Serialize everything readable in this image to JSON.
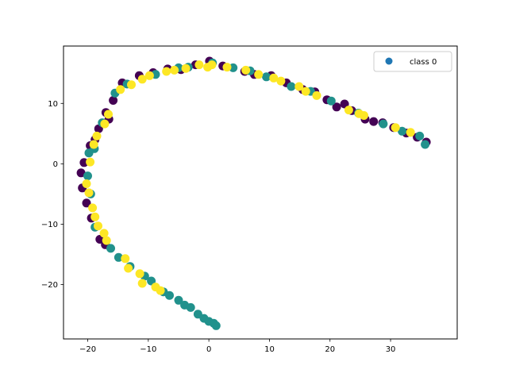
{
  "chart_data": {
    "type": "scatter",
    "title": "",
    "xlabel": "",
    "ylabel": "",
    "xlim": [
      -24,
      41
    ],
    "ylim": [
      -29,
      19.5
    ],
    "xticks": [
      -20,
      -10,
      0,
      10,
      20,
      30
    ],
    "yticks": [
      -20,
      -10,
      0,
      10
    ],
    "grid": false,
    "legend": {
      "position": "top-right",
      "entries": [
        "class 0"
      ],
      "marker_color": "#1f77b4"
    },
    "classes": [
      {
        "label": "0",
        "color": "#440154"
      },
      {
        "label": "1",
        "color": "#21918c"
      },
      {
        "label": "2",
        "color": "#fde725"
      }
    ],
    "points": [
      [
        -11.5,
        14.6,
        0
      ],
      [
        -14.3,
        13.4,
        0
      ],
      [
        -15.8,
        10.5,
        0
      ],
      [
        -17.0,
        8.5,
        0
      ],
      [
        -18.8,
        4.0,
        0
      ],
      [
        -19.6,
        3.0,
        0
      ],
      [
        -20.6,
        0.2,
        0
      ],
      [
        -21.1,
        -1.5,
        0
      ],
      [
        -20.9,
        -4.0,
        0
      ],
      [
        -20.2,
        -6.5,
        0
      ],
      [
        -19.4,
        -9.0,
        0
      ],
      [
        -18.0,
        -12.5,
        0
      ],
      [
        -17.1,
        -13.4,
        0
      ],
      [
        -9.2,
        15.1,
        0
      ],
      [
        -6.8,
        15.7,
        0
      ],
      [
        -4.6,
        15.6,
        0
      ],
      [
        -2.2,
        16.4,
        0
      ],
      [
        0.1,
        17.0,
        0
      ],
      [
        2.3,
        16.2,
        0
      ],
      [
        5.9,
        15.3,
        0
      ],
      [
        7.5,
        14.8,
        0
      ],
      [
        10.3,
        14.6,
        0
      ],
      [
        12.8,
        13.4,
        0
      ],
      [
        15.5,
        12.3,
        0
      ],
      [
        17.5,
        11.9,
        0
      ],
      [
        19.5,
        10.6,
        0
      ],
      [
        21.1,
        9.4,
        0
      ],
      [
        23.6,
        8.8,
        0
      ],
      [
        25.8,
        7.4,
        0
      ],
      [
        28.7,
        6.8,
        0
      ],
      [
        30.5,
        6.0,
        0
      ],
      [
        32.6,
        5.1,
        0
      ],
      [
        34.4,
        4.4,
        0
      ],
      [
        35.9,
        3.6,
        0
      ],
      [
        -18.2,
        5.8,
        0
      ],
      [
        -16.5,
        7.4,
        0
      ],
      [
        22.4,
        9.9,
        0
      ],
      [
        27.2,
        7.0,
        0
      ],
      [
        -17.6,
        6.8,
        1
      ],
      [
        -18.9,
        2.5,
        1
      ],
      [
        -19.8,
        1.8,
        1
      ],
      [
        -20.0,
        -2.0,
        1
      ],
      [
        -19.5,
        -5.0,
        1
      ],
      [
        -18.8,
        -10.5,
        1
      ],
      [
        -16.2,
        -14.0,
        1
      ],
      [
        -14.9,
        -15.5,
        1
      ],
      [
        -13.0,
        -17.0,
        1
      ],
      [
        -10.6,
        -18.6,
        1
      ],
      [
        -9.5,
        -19.4,
        1
      ],
      [
        -7.5,
        -21.2,
        1
      ],
      [
        -6.5,
        -21.8,
        1
      ],
      [
        -5.0,
        -22.6,
        1
      ],
      [
        -4.0,
        -23.4,
        1
      ],
      [
        -3.0,
        -23.8,
        1
      ],
      [
        -1.8,
        -24.9,
        1
      ],
      [
        -0.8,
        -25.6,
        1
      ],
      [
        0.0,
        -26.1,
        1
      ],
      [
        0.8,
        -26.4,
        1
      ],
      [
        1.2,
        -26.8,
        1
      ],
      [
        -13.5,
        13.2,
        1
      ],
      [
        -8.8,
        14.8,
        1
      ],
      [
        -5.0,
        15.9,
        1
      ],
      [
        -3.4,
        16.0,
        1
      ],
      [
        0.6,
        16.7,
        1
      ],
      [
        4.0,
        15.9,
        1
      ],
      [
        6.8,
        15.4,
        1
      ],
      [
        9.5,
        14.4,
        1
      ],
      [
        13.6,
        12.8,
        1
      ],
      [
        16.8,
        12.0,
        1
      ],
      [
        20.2,
        10.4,
        1
      ],
      [
        24.7,
        8.4,
        1
      ],
      [
        28.8,
        6.6,
        1
      ],
      [
        31.9,
        5.4,
        1
      ],
      [
        34.8,
        4.6,
        1
      ],
      [
        35.7,
        3.2,
        1
      ],
      [
        -15.5,
        11.7,
        1
      ],
      [
        -12.8,
        13.1,
        2
      ],
      [
        -11.0,
        14.0,
        2
      ],
      [
        -9.8,
        14.6,
        2
      ],
      [
        -7.0,
        15.3,
        2
      ],
      [
        -5.7,
        15.5,
        2
      ],
      [
        -3.8,
        15.8,
        2
      ],
      [
        -1.6,
        16.4,
        2
      ],
      [
        -0.2,
        16.0,
        2
      ],
      [
        0.5,
        16.4,
        2
      ],
      [
        3.0,
        16.0,
        2
      ],
      [
        6.1,
        15.5,
        2
      ],
      [
        8.2,
        14.8,
        2
      ],
      [
        10.7,
        14.2,
        2
      ],
      [
        11.9,
        13.7,
        2
      ],
      [
        14.9,
        12.8,
        2
      ],
      [
        16.0,
        12.0,
        2
      ],
      [
        17.8,
        11.3,
        2
      ],
      [
        23.1,
        8.9,
        2
      ],
      [
        24.8,
        8.3,
        2
      ],
      [
        25.6,
        8.0,
        2
      ],
      [
        30.8,
        6.0,
        2
      ],
      [
        33.3,
        5.2,
        2
      ],
      [
        -14.6,
        12.3,
        2
      ],
      [
        -16.6,
        8.2,
        2
      ],
      [
        -17.2,
        6.6,
        2
      ],
      [
        -18.5,
        4.6,
        2
      ],
      [
        -19.0,
        3.2,
        2
      ],
      [
        -19.6,
        0.3,
        2
      ],
      [
        -20.2,
        -3.3,
        2
      ],
      [
        -19.8,
        -4.8,
        2
      ],
      [
        -19.2,
        -7.3,
        2
      ],
      [
        -18.8,
        -8.8,
        2
      ],
      [
        -18.3,
        -10.3,
        2
      ],
      [
        -17.3,
        -11.5,
        2
      ],
      [
        -16.9,
        -12.7,
        2
      ],
      [
        -13.8,
        -15.7,
        2
      ],
      [
        -13.3,
        -17.3,
        2
      ],
      [
        -11.4,
        -18.2,
        2
      ],
      [
        -11.0,
        -19.8,
        2
      ],
      [
        -8.8,
        -20.4,
        2
      ],
      [
        -8.0,
        -21.0,
        2
      ]
    ]
  }
}
